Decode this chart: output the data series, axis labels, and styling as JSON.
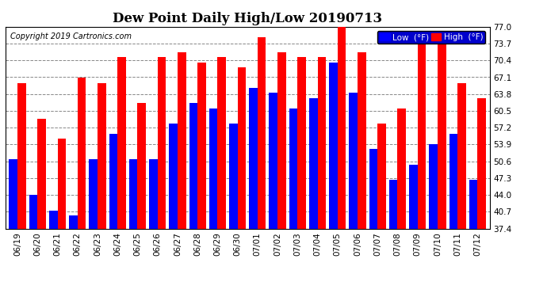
{
  "title": "Dew Point Daily High/Low 20190713",
  "copyright": "Copyright 2019 Cartronics.com",
  "dates": [
    "06/19",
    "06/20",
    "06/21",
    "06/22",
    "06/23",
    "06/24",
    "06/25",
    "06/26",
    "06/27",
    "06/28",
    "06/29",
    "06/30",
    "07/01",
    "07/02",
    "07/03",
    "07/04",
    "07/05",
    "07/06",
    "07/07",
    "07/08",
    "07/09",
    "07/10",
    "07/11",
    "07/12"
  ],
  "low_values": [
    51,
    44,
    41,
    40,
    51,
    56,
    51,
    51,
    58,
    62,
    61,
    58,
    65,
    64,
    61,
    63,
    70,
    64,
    53,
    47,
    50,
    54,
    56,
    47
  ],
  "high_values": [
    66,
    59,
    55,
    67,
    66,
    71,
    62,
    71,
    72,
    70,
    71,
    69,
    75,
    72,
    71,
    71,
    77,
    72,
    58,
    61,
    75,
    75,
    66,
    63
  ],
  "low_color": "#0000ff",
  "high_color": "#ff0000",
  "bg_color": "#ffffff",
  "plot_bg_color": "#ffffff",
  "grid_color": "#888888",
  "yticks": [
    37.4,
    40.7,
    44.0,
    47.3,
    50.6,
    53.9,
    57.2,
    60.5,
    63.8,
    67.1,
    70.4,
    73.7,
    77.0
  ],
  "ymin": 37.4,
  "ymax": 77.0,
  "bar_width": 0.42,
  "bar_gap": 0.0,
  "legend_low_label": "Low  (°F)",
  "legend_high_label": "High  (°F)",
  "title_fontsize": 12,
  "copyright_fontsize": 7,
  "tick_fontsize": 7.5,
  "legend_fontsize": 7.5,
  "legend_bg_color": "#0000cc"
}
